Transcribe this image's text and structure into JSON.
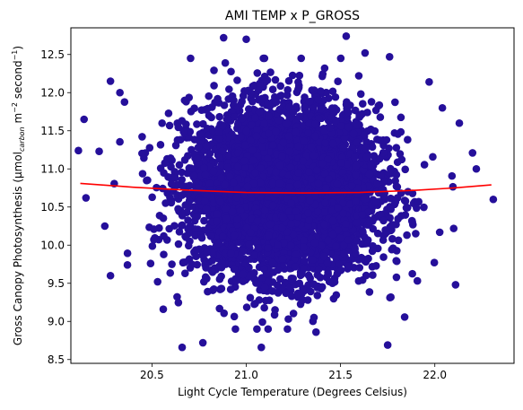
{
  "chart_data": {
    "type": "scatter",
    "title": "AMI TEMP x P_GROSS",
    "xlabel": "Light Cycle Temperature (Degrees Celsius)",
    "ylabel_parts": {
      "base": "Gross Canopy Photosynthesis (μmol",
      "sub": "carbon",
      "mid1": " m",
      "sup1": "−2",
      "mid2": " second",
      "sup2": "−1",
      "end": ")"
    },
    "xlim": [
      20.07,
      22.42
    ],
    "ylim": [
      8.45,
      12.85
    ],
    "xticks": [
      {
        "value": 20.5,
        "label": "20.5"
      },
      {
        "value": 21.0,
        "label": "21.0"
      },
      {
        "value": 21.5,
        "label": "21.5"
      },
      {
        "value": 22.0,
        "label": "22.0"
      }
    ],
    "yticks": [
      {
        "value": 8.5,
        "label": "8.5"
      },
      {
        "value": 9.0,
        "label": "9.0"
      },
      {
        "value": 9.5,
        "label": "9.5"
      },
      {
        "value": 10.0,
        "label": "10.0"
      },
      {
        "value": 10.5,
        "label": "10.5"
      },
      {
        "value": 11.0,
        "label": "11.0"
      },
      {
        "value": 11.5,
        "label": "11.5"
      },
      {
        "value": 12.0,
        "label": "12.0"
      },
      {
        "value": 12.5,
        "label": "12.5"
      }
    ],
    "grid": false,
    "legend": "none",
    "colors": {
      "points": "#250f9a",
      "fit": "#ff0000"
    },
    "scatter_distribution": {
      "n_points": 5000,
      "x_mean": 21.2,
      "x_sd": 0.25,
      "y_mean": 10.72,
      "y_sd": 0.55
    },
    "outlier_points": [
      {
        "x": 20.11,
        "y": 11.24
      },
      {
        "x": 20.14,
        "y": 11.65
      },
      {
        "x": 20.15,
        "y": 10.62
      },
      {
        "x": 20.22,
        "y": 11.23
      },
      {
        "x": 20.25,
        "y": 10.25
      },
      {
        "x": 20.28,
        "y": 12.15
      },
      {
        "x": 20.28,
        "y": 9.6
      },
      {
        "x": 20.33,
        "y": 12.0
      },
      {
        "x": 20.37,
        "y": 9.74
      },
      {
        "x": 20.53,
        "y": 9.52
      },
      {
        "x": 20.56,
        "y": 9.16
      },
      {
        "x": 20.66,
        "y": 8.66
      },
      {
        "x": 20.77,
        "y": 8.72
      },
      {
        "x": 20.88,
        "y": 12.72
      },
      {
        "x": 21.0,
        "y": 12.7
      },
      {
        "x": 21.08,
        "y": 8.66
      },
      {
        "x": 21.37,
        "y": 8.86
      },
      {
        "x": 21.53,
        "y": 12.74
      },
      {
        "x": 21.63,
        "y": 12.52
      },
      {
        "x": 21.75,
        "y": 8.69
      },
      {
        "x": 21.76,
        "y": 12.47
      },
      {
        "x": 21.97,
        "y": 12.14
      },
      {
        "x": 22.04,
        "y": 11.8
      },
      {
        "x": 22.13,
        "y": 11.6
      },
      {
        "x": 22.2,
        "y": 11.21
      },
      {
        "x": 22.22,
        "y": 11.0
      },
      {
        "x": 22.11,
        "y": 9.48
      },
      {
        "x": 22.31,
        "y": 10.6
      }
    ],
    "fit_curve": {
      "x": [
        20.12,
        20.4,
        20.7,
        21.0,
        21.3,
        21.6,
        21.9,
        22.1,
        22.3
      ],
      "y": [
        10.81,
        10.76,
        10.72,
        10.69,
        10.685,
        10.69,
        10.72,
        10.75,
        10.79
      ]
    }
  }
}
